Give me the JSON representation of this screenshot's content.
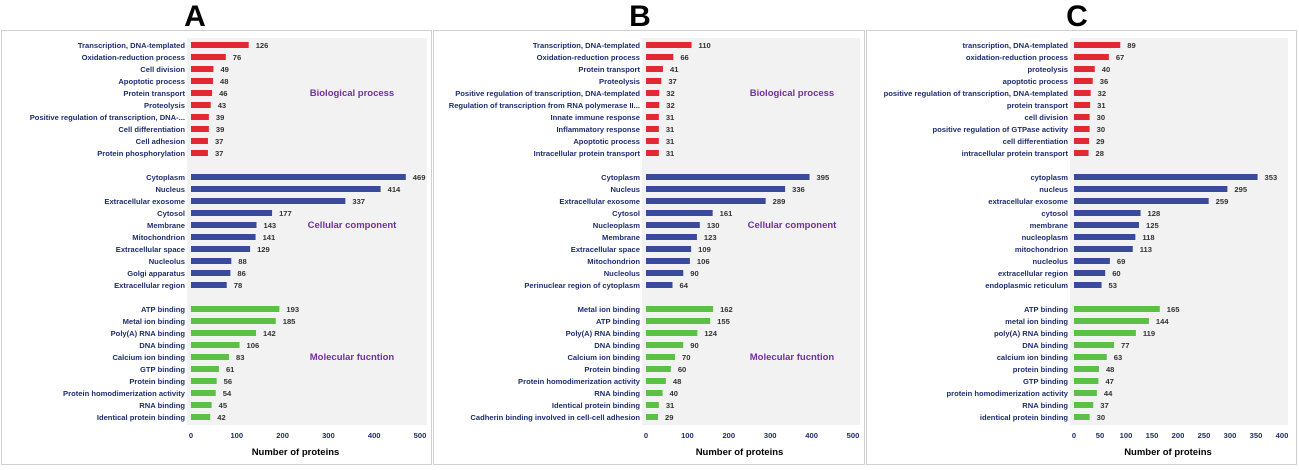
{
  "colors": {
    "bp": "#e02a2f",
    "cc": "#3a4a9a",
    "mf": "#5cbf46",
    "category_label": "#7030a0",
    "tick_label": "#1f2d6e",
    "panel_bg": "#f2f2f2",
    "panel_border": "#d0d0d0"
  },
  "chart_data": [
    {
      "type": "bar",
      "orientation": "horizontal",
      "panel_label": "A",
      "xlabel": "Number of proteins",
      "xlim": [
        0,
        500
      ],
      "xticks": [
        0,
        100,
        200,
        300,
        400,
        500
      ],
      "groups": [
        {
          "name": "Biological process",
          "color_key": "bp",
          "categories": [
            "Transcription, DNA-templated",
            "Oxidation-reduction process",
            "Cell division",
            "Apoptotic process",
            "Protein transport",
            "Proteolysis",
            "Positive regulation of transcription, DNA-...",
            "Cell differentiation",
            "Cell adhesion",
            "Protein phosphorylation"
          ],
          "values": [
            126,
            76,
            49,
            48,
            46,
            43,
            39,
            39,
            37,
            37
          ]
        },
        {
          "name": "Cellular component",
          "color_key": "cc",
          "categories": [
            "Cytoplasm",
            "Nucleus",
            "Extracellular exosome",
            "Cytosol",
            "Membrane",
            "Mitochondrion",
            "Extracellular space",
            "Nucleolus",
            "Golgi apparatus",
            "Extracellular region"
          ],
          "values": [
            469,
            414,
            337,
            177,
            143,
            141,
            129,
            88,
            86,
            78
          ]
        },
        {
          "name": "Molecular fucntion",
          "color_key": "mf",
          "categories": [
            "ATP binding",
            "Metal ion binding",
            "Poly(A) RNA binding",
            "DNA binding",
            "Calcium ion binding",
            "GTP binding",
            "Protein binding",
            "Protein homodimerization activity",
            "RNA binding",
            "Identical protein binding"
          ],
          "values": [
            193,
            185,
            142,
            106,
            83,
            61,
            56,
            54,
            45,
            42
          ]
        }
      ]
    },
    {
      "type": "bar",
      "orientation": "horizontal",
      "panel_label": "B",
      "xlabel": "Number of proteins",
      "xlim": [
        0,
        500
      ],
      "xticks": [
        0,
        100,
        200,
        300,
        400,
        500
      ],
      "groups": [
        {
          "name": "Biological process",
          "color_key": "bp",
          "categories": [
            "Transcription, DNA-templated",
            "Oxidation-reduction process",
            "Protein transport",
            "Proteolysis",
            "Positive regulation of transcription, DNA-templated",
            "Regulation of transcription from RNA polymerase II...",
            "Innate immune response",
            "Inflammatory response",
            "Apoptotic process",
            "Intracellular protein transport"
          ],
          "values": [
            110,
            66,
            41,
            37,
            32,
            32,
            31,
            31,
            31,
            31
          ]
        },
        {
          "name": "Cellular component",
          "color_key": "cc",
          "categories": [
            "Cytoplasm",
            "Nucleus",
            "Extracellular exosome",
            "Cytosol",
            "Nucleoplasm",
            "Membrane",
            "Extracellular space",
            "Mitochondrion",
            "Nucleolus",
            "Perinuclear region of cytoplasm"
          ],
          "values": [
            395,
            336,
            289,
            161,
            130,
            123,
            109,
            106,
            90,
            64
          ]
        },
        {
          "name": "Molecular fucntion",
          "color_key": "mf",
          "categories": [
            "Metal ion binding",
            "ATP binding",
            "Poly(A) RNA binding",
            "DNA binding",
            "Calcium ion binding",
            "Protein binding",
            "Protein homodimerization activity",
            "RNA binding",
            "Identical protein binding",
            "Cadherin binding involved in cell-cell adhesion"
          ],
          "values": [
            162,
            155,
            124,
            90,
            70,
            60,
            48,
            40,
            31,
            29
          ]
        }
      ]
    },
    {
      "type": "bar",
      "orientation": "horizontal",
      "panel_label": "C",
      "xlabel": "Number of proteins",
      "xlim": [
        0,
        400
      ],
      "xticks": [
        0,
        50,
        100,
        150,
        200,
        250,
        300,
        350,
        400
      ],
      "groups": [
        {
          "name": "",
          "color_key": "bp",
          "categories": [
            "transcription, DNA-templated",
            "oxidation-reduction process",
            "proteolysis",
            "apoptotic process",
            "positive regulation of transcription, DNA-templated",
            "protein transport",
            "cell division",
            "positive regulation of GTPase activity",
            "cell differentiation",
            "intracellular protein transport"
          ],
          "values": [
            89,
            67,
            40,
            36,
            32,
            31,
            30,
            30,
            29,
            28
          ]
        },
        {
          "name": "",
          "color_key": "cc",
          "categories": [
            "cytoplasm",
            "nucleus",
            "extracellular exosome",
            "cytosol",
            "membrane",
            "nucleoplasm",
            "mitochondrion",
            "nucleolus",
            "extracellular region",
            "endoplasmic reticulum"
          ],
          "values": [
            353,
            295,
            259,
            128,
            125,
            118,
            113,
            69,
            60,
            53
          ]
        },
        {
          "name": "",
          "color_key": "mf",
          "categories": [
            "ATP binding",
            "metal ion binding",
            "poly(A) RNA binding",
            "DNA binding",
            "calcium ion binding",
            "protein binding",
            "GTP binding",
            "protein homodimerization activity",
            "RNA binding",
            "identical protein binding"
          ],
          "values": [
            165,
            144,
            119,
            77,
            63,
            48,
            47,
            44,
            37,
            30
          ]
        }
      ]
    }
  ]
}
